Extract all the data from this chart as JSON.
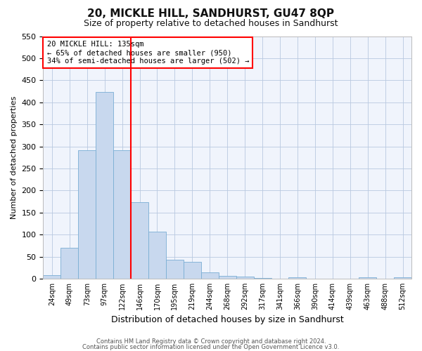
{
  "title": "20, MICKLE HILL, SANDHURST, GU47 8QP",
  "subtitle": "Size of property relative to detached houses in Sandhurst",
  "xlabel": "Distribution of detached houses by size in Sandhurst",
  "ylabel": "Number of detached properties",
  "bar_labels": [
    "24sqm",
    "49sqm",
    "73sqm",
    "97sqm",
    "122sqm",
    "146sqm",
    "170sqm",
    "195sqm",
    "219sqm",
    "244sqm",
    "268sqm",
    "292sqm",
    "317sqm",
    "341sqm",
    "366sqm",
    "390sqm",
    "414sqm",
    "439sqm",
    "463sqm",
    "488sqm",
    "512sqm"
  ],
  "bar_values": [
    8,
    70,
    291,
    424,
    291,
    173,
    106,
    43,
    38,
    15,
    7,
    4,
    2,
    0,
    3,
    0,
    0,
    0,
    3,
    0,
    3
  ],
  "bar_color": "#c8d8ee",
  "bar_edge_color": "#7aaed4",
  "vline_x": 4.5,
  "vline_color": "red",
  "annotation_title": "20 MICKLE HILL: 135sqm",
  "annotation_line1": "← 65% of detached houses are smaller (950)",
  "annotation_line2": "34% of semi-detached houses are larger (502) →",
  "ylim": [
    0,
    550
  ],
  "yticks": [
    0,
    50,
    100,
    150,
    200,
    250,
    300,
    350,
    400,
    450,
    500,
    550
  ],
  "footer_line1": "Contains HM Land Registry data © Crown copyright and database right 2024.",
  "footer_line2": "Contains public sector information licensed under the Open Government Licence v3.0.",
  "bg_color": "#ffffff",
  "plot_bg_color": "#f0f4fc",
  "grid_color": "#b8c8e0",
  "title_fontsize": 11,
  "subtitle_fontsize": 9,
  "ylabel_fontsize": 8,
  "xlabel_fontsize": 9
}
